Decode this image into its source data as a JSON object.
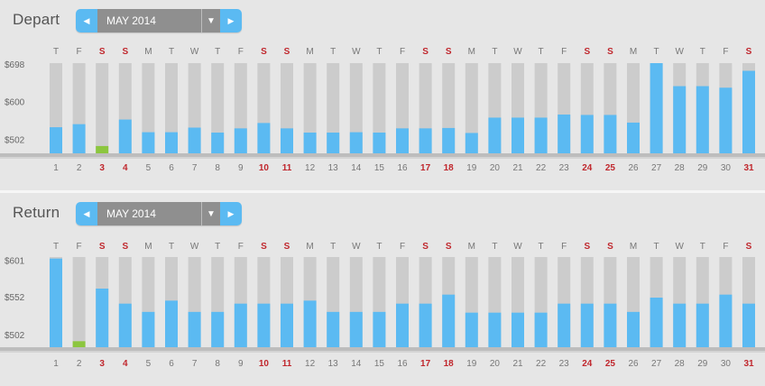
{
  "depart": {
    "title": "Depart",
    "month": "MAY 2014",
    "prev_icon": "triangle-left",
    "next_icon": "triangle-right",
    "dropdown_icon": "triangle-down",
    "y_ticks": [
      "$698",
      "$600",
      "$502"
    ],
    "lowest_day": 3
  },
  "return": {
    "title": "Return",
    "month": "MAY 2014",
    "prev_icon": "triangle-left",
    "next_icon": "triangle-right",
    "dropdown_icon": "triangle-down",
    "y_ticks": [
      "$601",
      "$552",
      "$502"
    ],
    "lowest_day": 2
  },
  "colors": {
    "bar": "#5bbaf2",
    "lowest_bar": "#8cc63f",
    "bar_track": "#cccccc",
    "weekend": "#c0272d"
  },
  "chart_data": [
    {
      "type": "bar",
      "title": "Depart",
      "categories": [
        "1",
        "2",
        "3",
        "4",
        "5",
        "6",
        "7",
        "8",
        "9",
        "10",
        "11",
        "12",
        "13",
        "14",
        "15",
        "16",
        "17",
        "18",
        "19",
        "20",
        "21",
        "22",
        "23",
        "24",
        "25",
        "26",
        "27",
        "28",
        "29",
        "30",
        "31"
      ],
      "weekdays": [
        "T",
        "F",
        "S",
        "S",
        "M",
        "T",
        "W",
        "T",
        "F",
        "S",
        "S",
        "M",
        "T",
        "W",
        "T",
        "F",
        "S",
        "S",
        "M",
        "T",
        "W",
        "T",
        "F",
        "S",
        "S",
        "M",
        "T",
        "W",
        "T",
        "F",
        "S"
      ],
      "weekend_days": [
        3,
        4,
        10,
        11,
        17,
        18,
        24,
        25,
        31
      ],
      "values": [
        533,
        541,
        484,
        553,
        520,
        520,
        532,
        519,
        530,
        544,
        530,
        519,
        519,
        520,
        519,
        530,
        530,
        531,
        518,
        558,
        558,
        558,
        566,
        565,
        565,
        545,
        700,
        640,
        640,
        636,
        680
      ],
      "y_ticks": [
        698,
        600,
        502
      ],
      "ylim": [
        465,
        700
      ],
      "xlabel": "",
      "ylabel": ""
    },
    {
      "type": "bar",
      "title": "Return",
      "categories": [
        "1",
        "2",
        "3",
        "4",
        "5",
        "6",
        "7",
        "8",
        "9",
        "10",
        "11",
        "12",
        "13",
        "14",
        "15",
        "16",
        "17",
        "18",
        "19",
        "20",
        "21",
        "22",
        "23",
        "24",
        "25",
        "26",
        "27",
        "28",
        "29",
        "30",
        "31"
      ],
      "weekdays": [
        "T",
        "F",
        "S",
        "S",
        "M",
        "T",
        "W",
        "T",
        "F",
        "S",
        "S",
        "M",
        "T",
        "W",
        "T",
        "F",
        "S",
        "S",
        "M",
        "T",
        "W",
        "T",
        "F",
        "S",
        "S",
        "M",
        "T",
        "W",
        "T",
        "F",
        "S"
      ],
      "weekend_days": [
        3,
        4,
        10,
        11,
        17,
        18,
        24,
        25,
        31
      ],
      "values": [
        603,
        493,
        563,
        543,
        532,
        547,
        532,
        532,
        543,
        543,
        543,
        547,
        532,
        532,
        532,
        543,
        543,
        555,
        531,
        531,
        531,
        531,
        543,
        543,
        543,
        532,
        551,
        543,
        543,
        555,
        543
      ],
      "y_ticks": [
        601,
        552,
        502
      ],
      "ylim": [
        485,
        605
      ],
      "xlabel": "",
      "ylabel": ""
    }
  ]
}
